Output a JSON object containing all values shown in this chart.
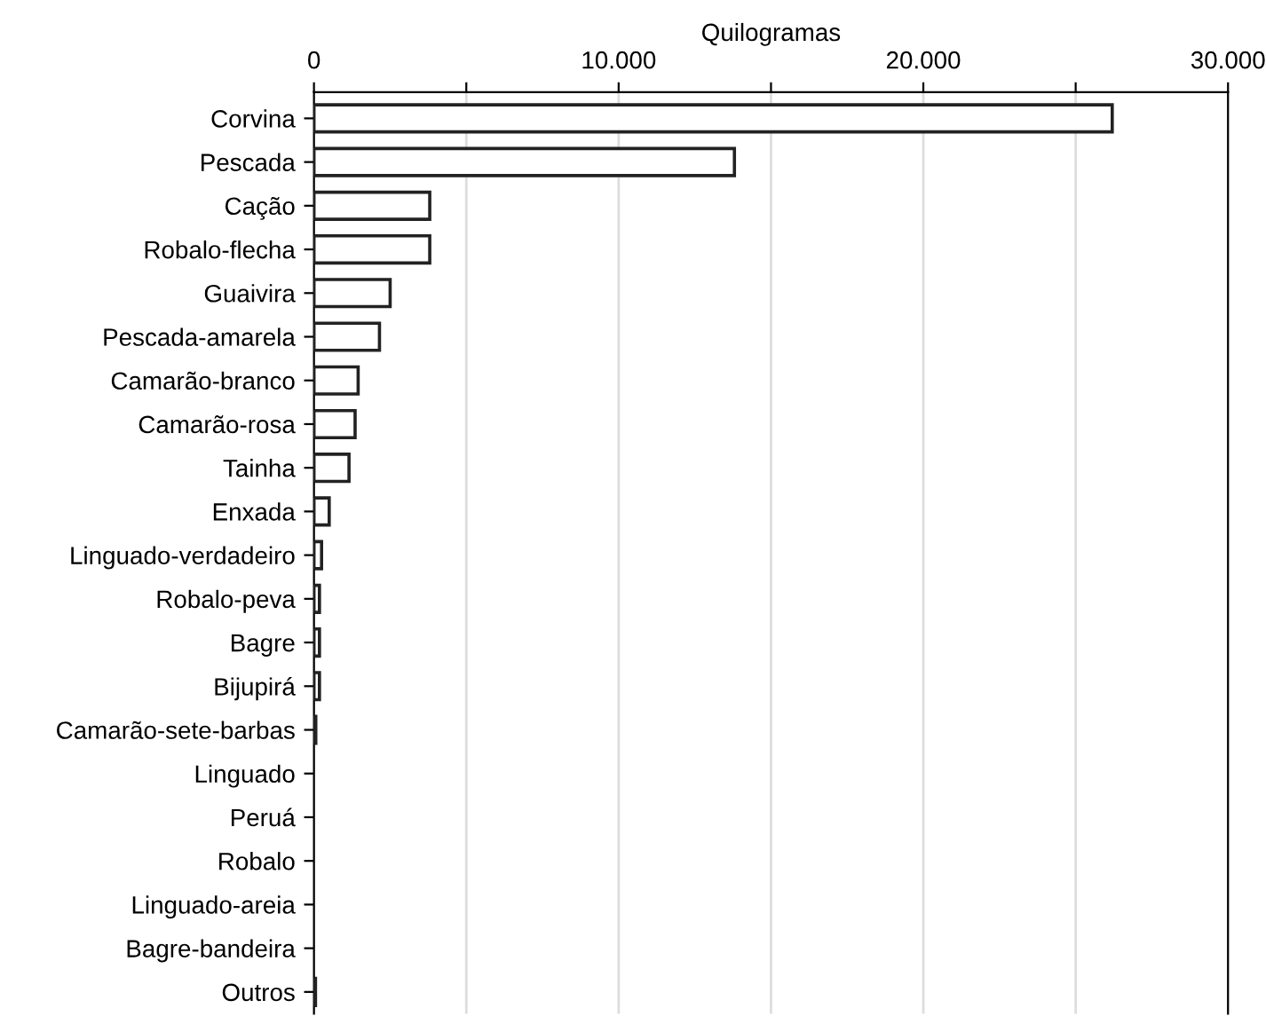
{
  "chart_data": {
    "type": "bar",
    "orientation": "horizontal",
    "xlabel": "Quilogramas",
    "categories": [
      "Corvina",
      "Pescada",
      "Cação",
      "Robalo-flecha",
      "Guaivira",
      "Pescada-amarela",
      "Camarão-branco",
      "Camarão-rosa",
      "Tainha",
      "Enxada",
      "Linguado-verdadeiro",
      "Robalo-peva",
      "Bagre",
      "Bijupirá",
      "Camarão-sete-barbas",
      "Linguado",
      "Peruá",
      "Robalo",
      "Linguado-areia",
      "Bagre-bandeira",
      "Outros"
    ],
    "values": [
      26200,
      13800,
      3800,
      3800,
      2500,
      2150,
      1450,
      1350,
      1150,
      500,
      250,
      180,
      180,
      180,
      60,
      0,
      0,
      0,
      0,
      0,
      50
    ],
    "color": "#ffffff",
    "xlim": [
      0,
      30000
    ],
    "xticks": [
      0,
      {
        "value": 5000,
        "label": null
      },
      {
        "value": 10000,
        "label": "10.000"
      },
      {
        "value": 15000,
        "label": null
      },
      {
        "value": 20000,
        "label": "20.000"
      },
      {
        "value": 25000,
        "label": null
      },
      {
        "value": 30000,
        "label": "30.000"
      }
    ],
    "grid": "x"
  }
}
